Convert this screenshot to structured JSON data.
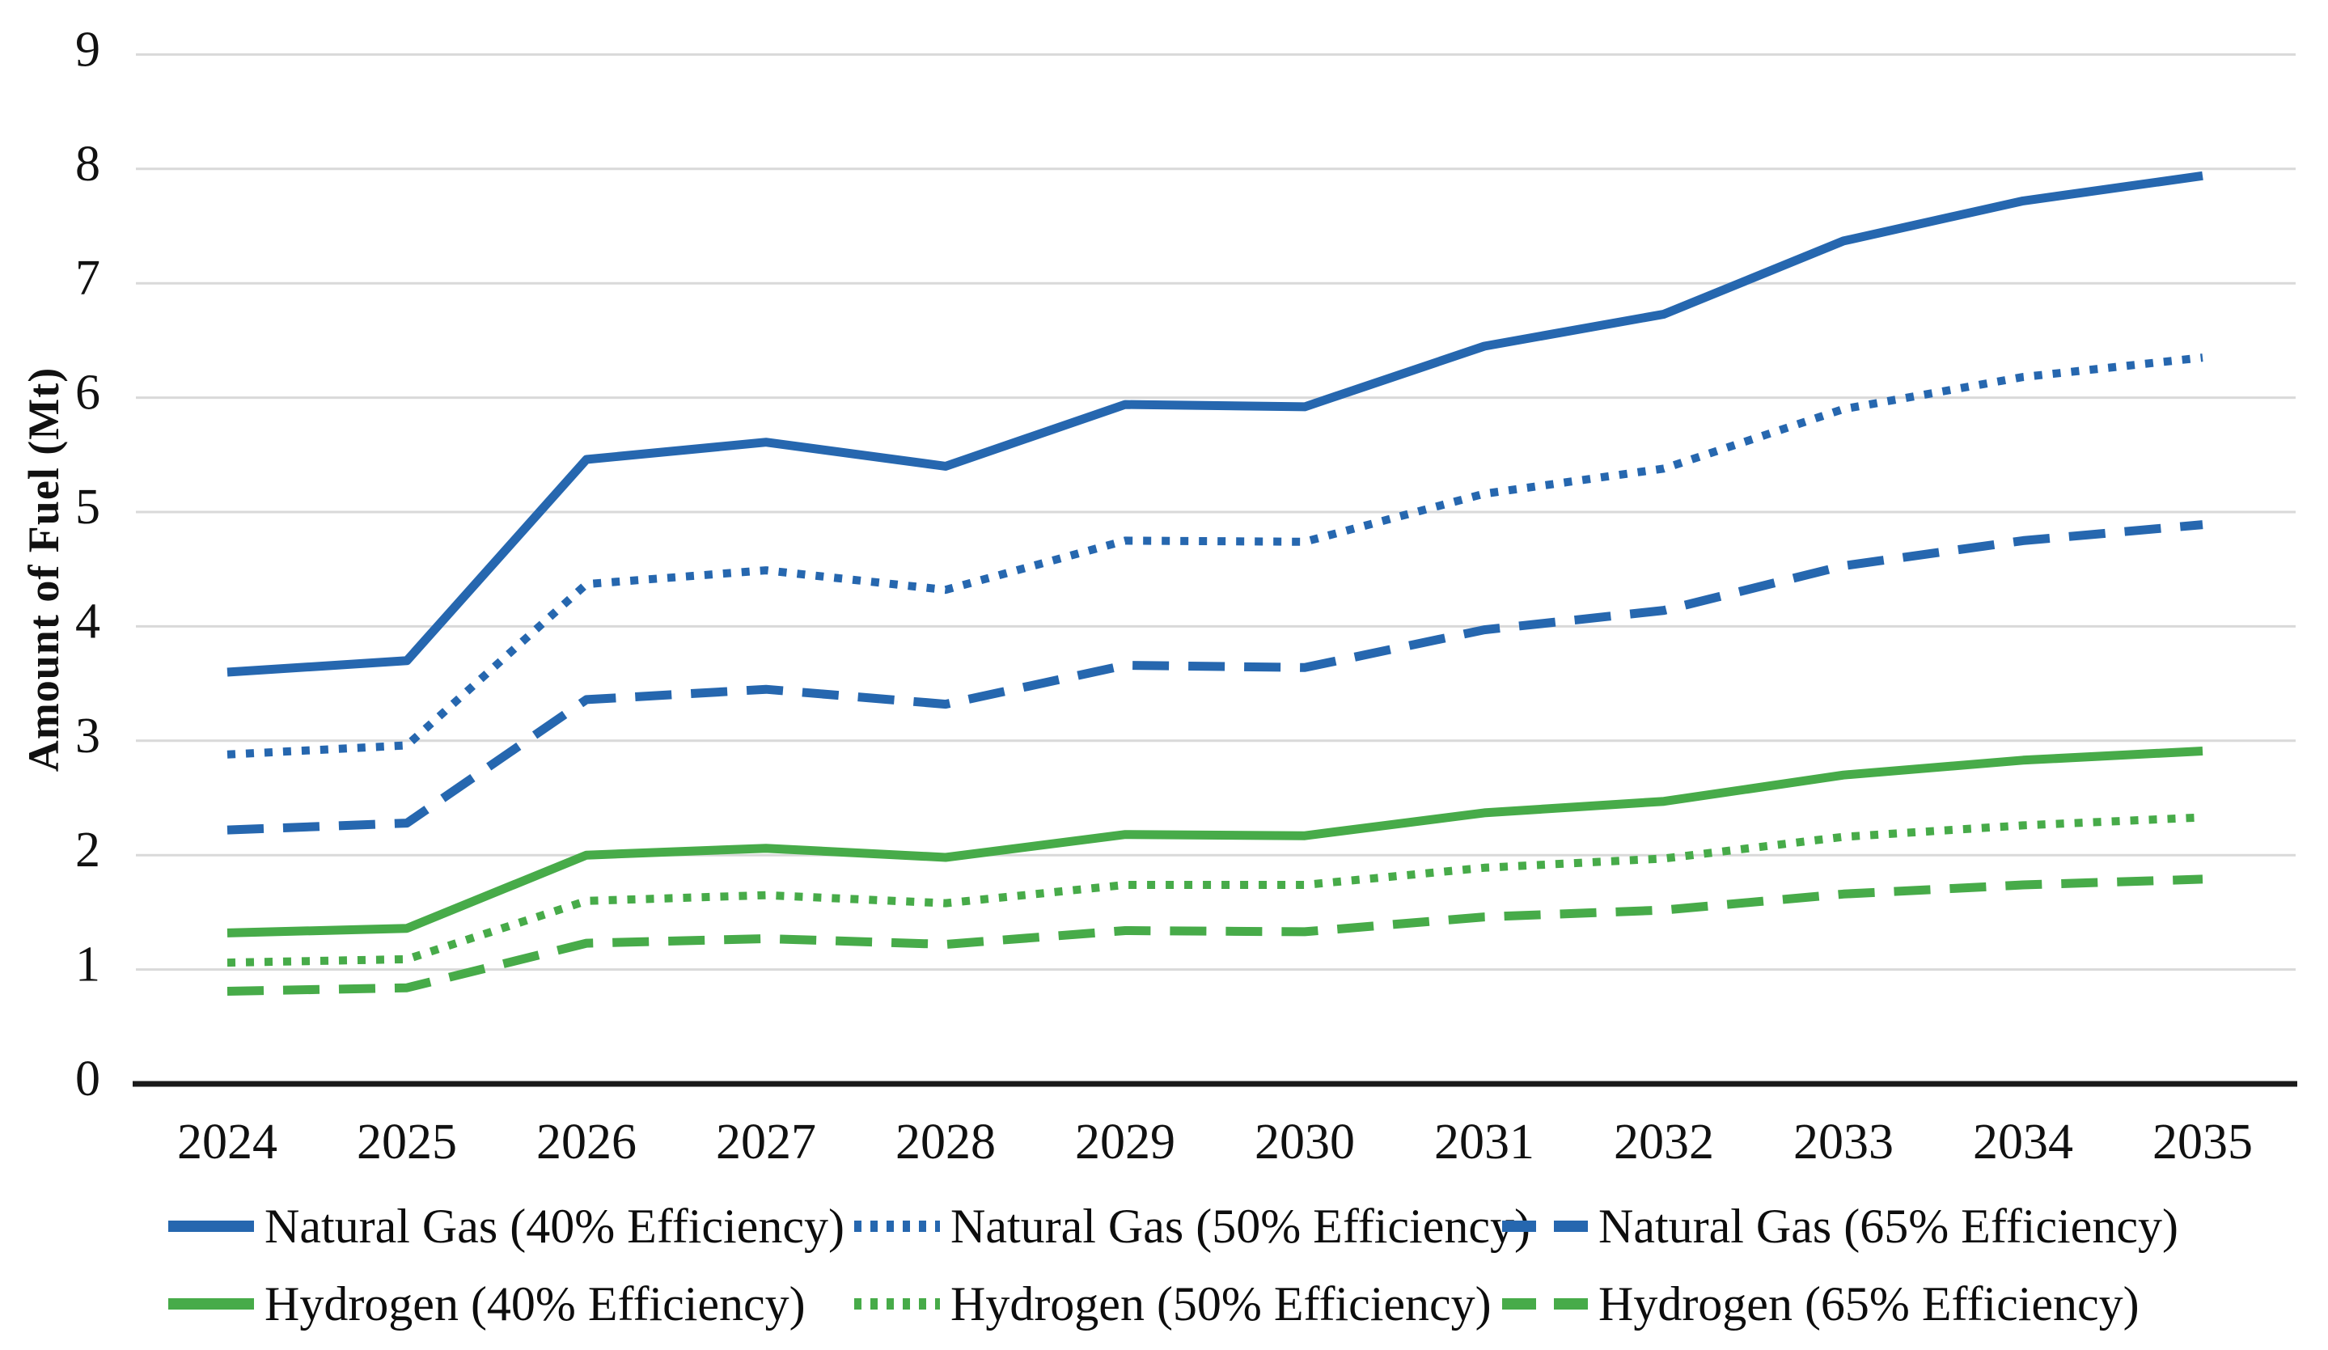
{
  "chart_data": {
    "type": "line",
    "title": "",
    "xlabel": "",
    "ylabel": "Amount of Fuel (Mt)",
    "ylim": [
      0,
      9
    ],
    "yticks": [
      "0",
      "1",
      "2",
      "3",
      "4",
      "5",
      "6",
      "7",
      "8",
      "9"
    ],
    "categories": [
      "2024",
      "2025",
      "2026",
      "2027",
      "2028",
      "2029",
      "2030",
      "2031",
      "2032",
      "2033",
      "2034",
      "2035"
    ],
    "grid": "horizontal-only",
    "legend_position": "bottom",
    "colors": {
      "natural_gas": "#2667AF",
      "hydrogen": "#47AB49",
      "gridline": "#D9D9D9",
      "axis": "#1A1A1A",
      "text": "#111111"
    },
    "series": [
      {
        "name": "Natural Gas (40% Efficiency)",
        "fuel": "natural_gas",
        "style": "solid",
        "values": [
          3.6,
          3.7,
          5.46,
          5.61,
          5.4,
          5.94,
          5.92,
          6.45,
          6.73,
          7.37,
          7.72,
          7.94
        ]
      },
      {
        "name": "Natural Gas (50% Efficiency)",
        "fuel": "natural_gas",
        "style": "dotted",
        "values": [
          2.88,
          2.96,
          4.37,
          4.49,
          4.32,
          4.75,
          4.74,
          5.16,
          5.38,
          5.9,
          6.18,
          6.35
        ]
      },
      {
        "name": "Natural Gas (65% Efficiency)",
        "fuel": "natural_gas",
        "style": "dashed",
        "values": [
          2.22,
          2.28,
          3.36,
          3.45,
          3.32,
          3.66,
          3.64,
          3.97,
          4.14,
          4.53,
          4.75,
          4.89
        ]
      },
      {
        "name": "Hydrogen (40% Efficiency)",
        "fuel": "hydrogen",
        "style": "solid",
        "values": [
          1.32,
          1.36,
          2.0,
          2.06,
          1.98,
          2.18,
          2.17,
          2.37,
          2.47,
          2.7,
          2.83,
          2.91
        ]
      },
      {
        "name": "Hydrogen (50% Efficiency)",
        "fuel": "hydrogen",
        "style": "dotted",
        "values": [
          1.06,
          1.09,
          1.6,
          1.65,
          1.58,
          1.74,
          1.74,
          1.89,
          1.97,
          2.16,
          2.26,
          2.33
        ]
      },
      {
        "name": "Hydrogen (65% Efficiency)",
        "fuel": "hydrogen",
        "style": "dashed",
        "values": [
          0.81,
          0.84,
          1.23,
          1.27,
          1.22,
          1.34,
          1.33,
          1.46,
          1.52,
          1.66,
          1.74,
          1.79
        ]
      }
    ]
  }
}
